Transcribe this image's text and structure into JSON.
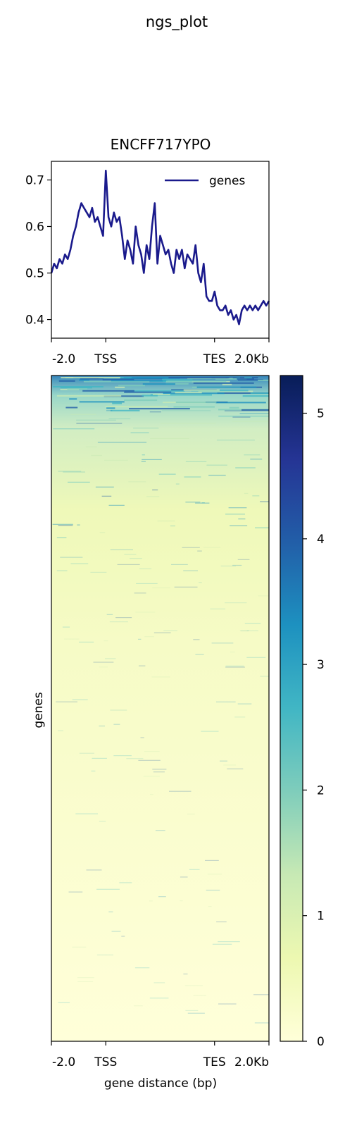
{
  "figure": {
    "suptitle": "ngs_plot"
  },
  "chart_data": [
    {
      "type": "line",
      "title": "ENCFF717YPO",
      "xlabel": "",
      "ylabel": "",
      "x_ticks": [
        "-2.0",
        "TSS",
        "TES",
        "2.0Kb"
      ],
      "x_tick_positions": [
        0,
        2,
        6,
        8
      ],
      "xlim": [
        0,
        8
      ],
      "y_ticks": [
        "0.4",
        "0.5",
        "0.6",
        "0.7"
      ],
      "y_tick_values": [
        0.4,
        0.5,
        0.6,
        0.7
      ],
      "ylim": [
        0.36,
        0.74
      ],
      "legend": {
        "placement": "top-right",
        "entries": [
          "genes"
        ]
      },
      "series": [
        {
          "name": "genes",
          "color": "#1a1a8c",
          "x": [
            0.0,
            0.1,
            0.2,
            0.3,
            0.4,
            0.5,
            0.6,
            0.7,
            0.8,
            0.9,
            1.0,
            1.1,
            1.2,
            1.3,
            1.4,
            1.5,
            1.6,
            1.7,
            1.8,
            1.9,
            2.0,
            2.1,
            2.2,
            2.3,
            2.4,
            2.5,
            2.6,
            2.7,
            2.8,
            2.9,
            3.0,
            3.1,
            3.2,
            3.3,
            3.4,
            3.5,
            3.6,
            3.7,
            3.8,
            3.9,
            4.0,
            4.1,
            4.2,
            4.3,
            4.4,
            4.5,
            4.6,
            4.7,
            4.8,
            4.9,
            5.0,
            5.1,
            5.2,
            5.3,
            5.4,
            5.5,
            5.6,
            5.7,
            5.8,
            5.9,
            6.0,
            6.1,
            6.2,
            6.3,
            6.4,
            6.5,
            6.6,
            6.7,
            6.8,
            6.9,
            7.0,
            7.1,
            7.2,
            7.3,
            7.4,
            7.5,
            7.6,
            7.7,
            7.8,
            7.9,
            8.0
          ],
          "y": [
            0.5,
            0.52,
            0.51,
            0.53,
            0.52,
            0.54,
            0.53,
            0.55,
            0.58,
            0.6,
            0.63,
            0.65,
            0.64,
            0.63,
            0.62,
            0.64,
            0.61,
            0.62,
            0.6,
            0.58,
            0.72,
            0.62,
            0.6,
            0.63,
            0.61,
            0.62,
            0.58,
            0.53,
            0.57,
            0.55,
            0.52,
            0.6,
            0.56,
            0.54,
            0.5,
            0.56,
            0.53,
            0.6,
            0.65,
            0.52,
            0.58,
            0.56,
            0.54,
            0.55,
            0.52,
            0.5,
            0.55,
            0.53,
            0.55,
            0.51,
            0.54,
            0.53,
            0.52,
            0.56,
            0.5,
            0.48,
            0.52,
            0.45,
            0.44,
            0.44,
            0.46,
            0.43,
            0.42,
            0.42,
            0.43,
            0.41,
            0.42,
            0.4,
            0.41,
            0.39,
            0.42,
            0.43,
            0.42,
            0.43,
            0.42,
            0.43,
            0.42,
            0.43,
            0.44,
            0.43,
            0.44
          ]
        }
      ]
    },
    {
      "type": "heatmap",
      "title": "",
      "xlabel": "gene distance (bp)",
      "ylabel": "genes",
      "x_ticks": [
        "-2.0",
        "TSS",
        "TES",
        "2.0Kb"
      ],
      "x_tick_positions": [
        0,
        2,
        6,
        8
      ],
      "xlim": [
        0,
        8
      ],
      "colormap": "YlGnBu",
      "colorbar": {
        "ticks": [
          "0",
          "1",
          "2",
          "3",
          "4",
          "5"
        ],
        "tick_values": [
          0,
          1,
          2,
          3,
          4,
          5
        ],
        "range": [
          0,
          5.3
        ]
      }
    }
  ]
}
